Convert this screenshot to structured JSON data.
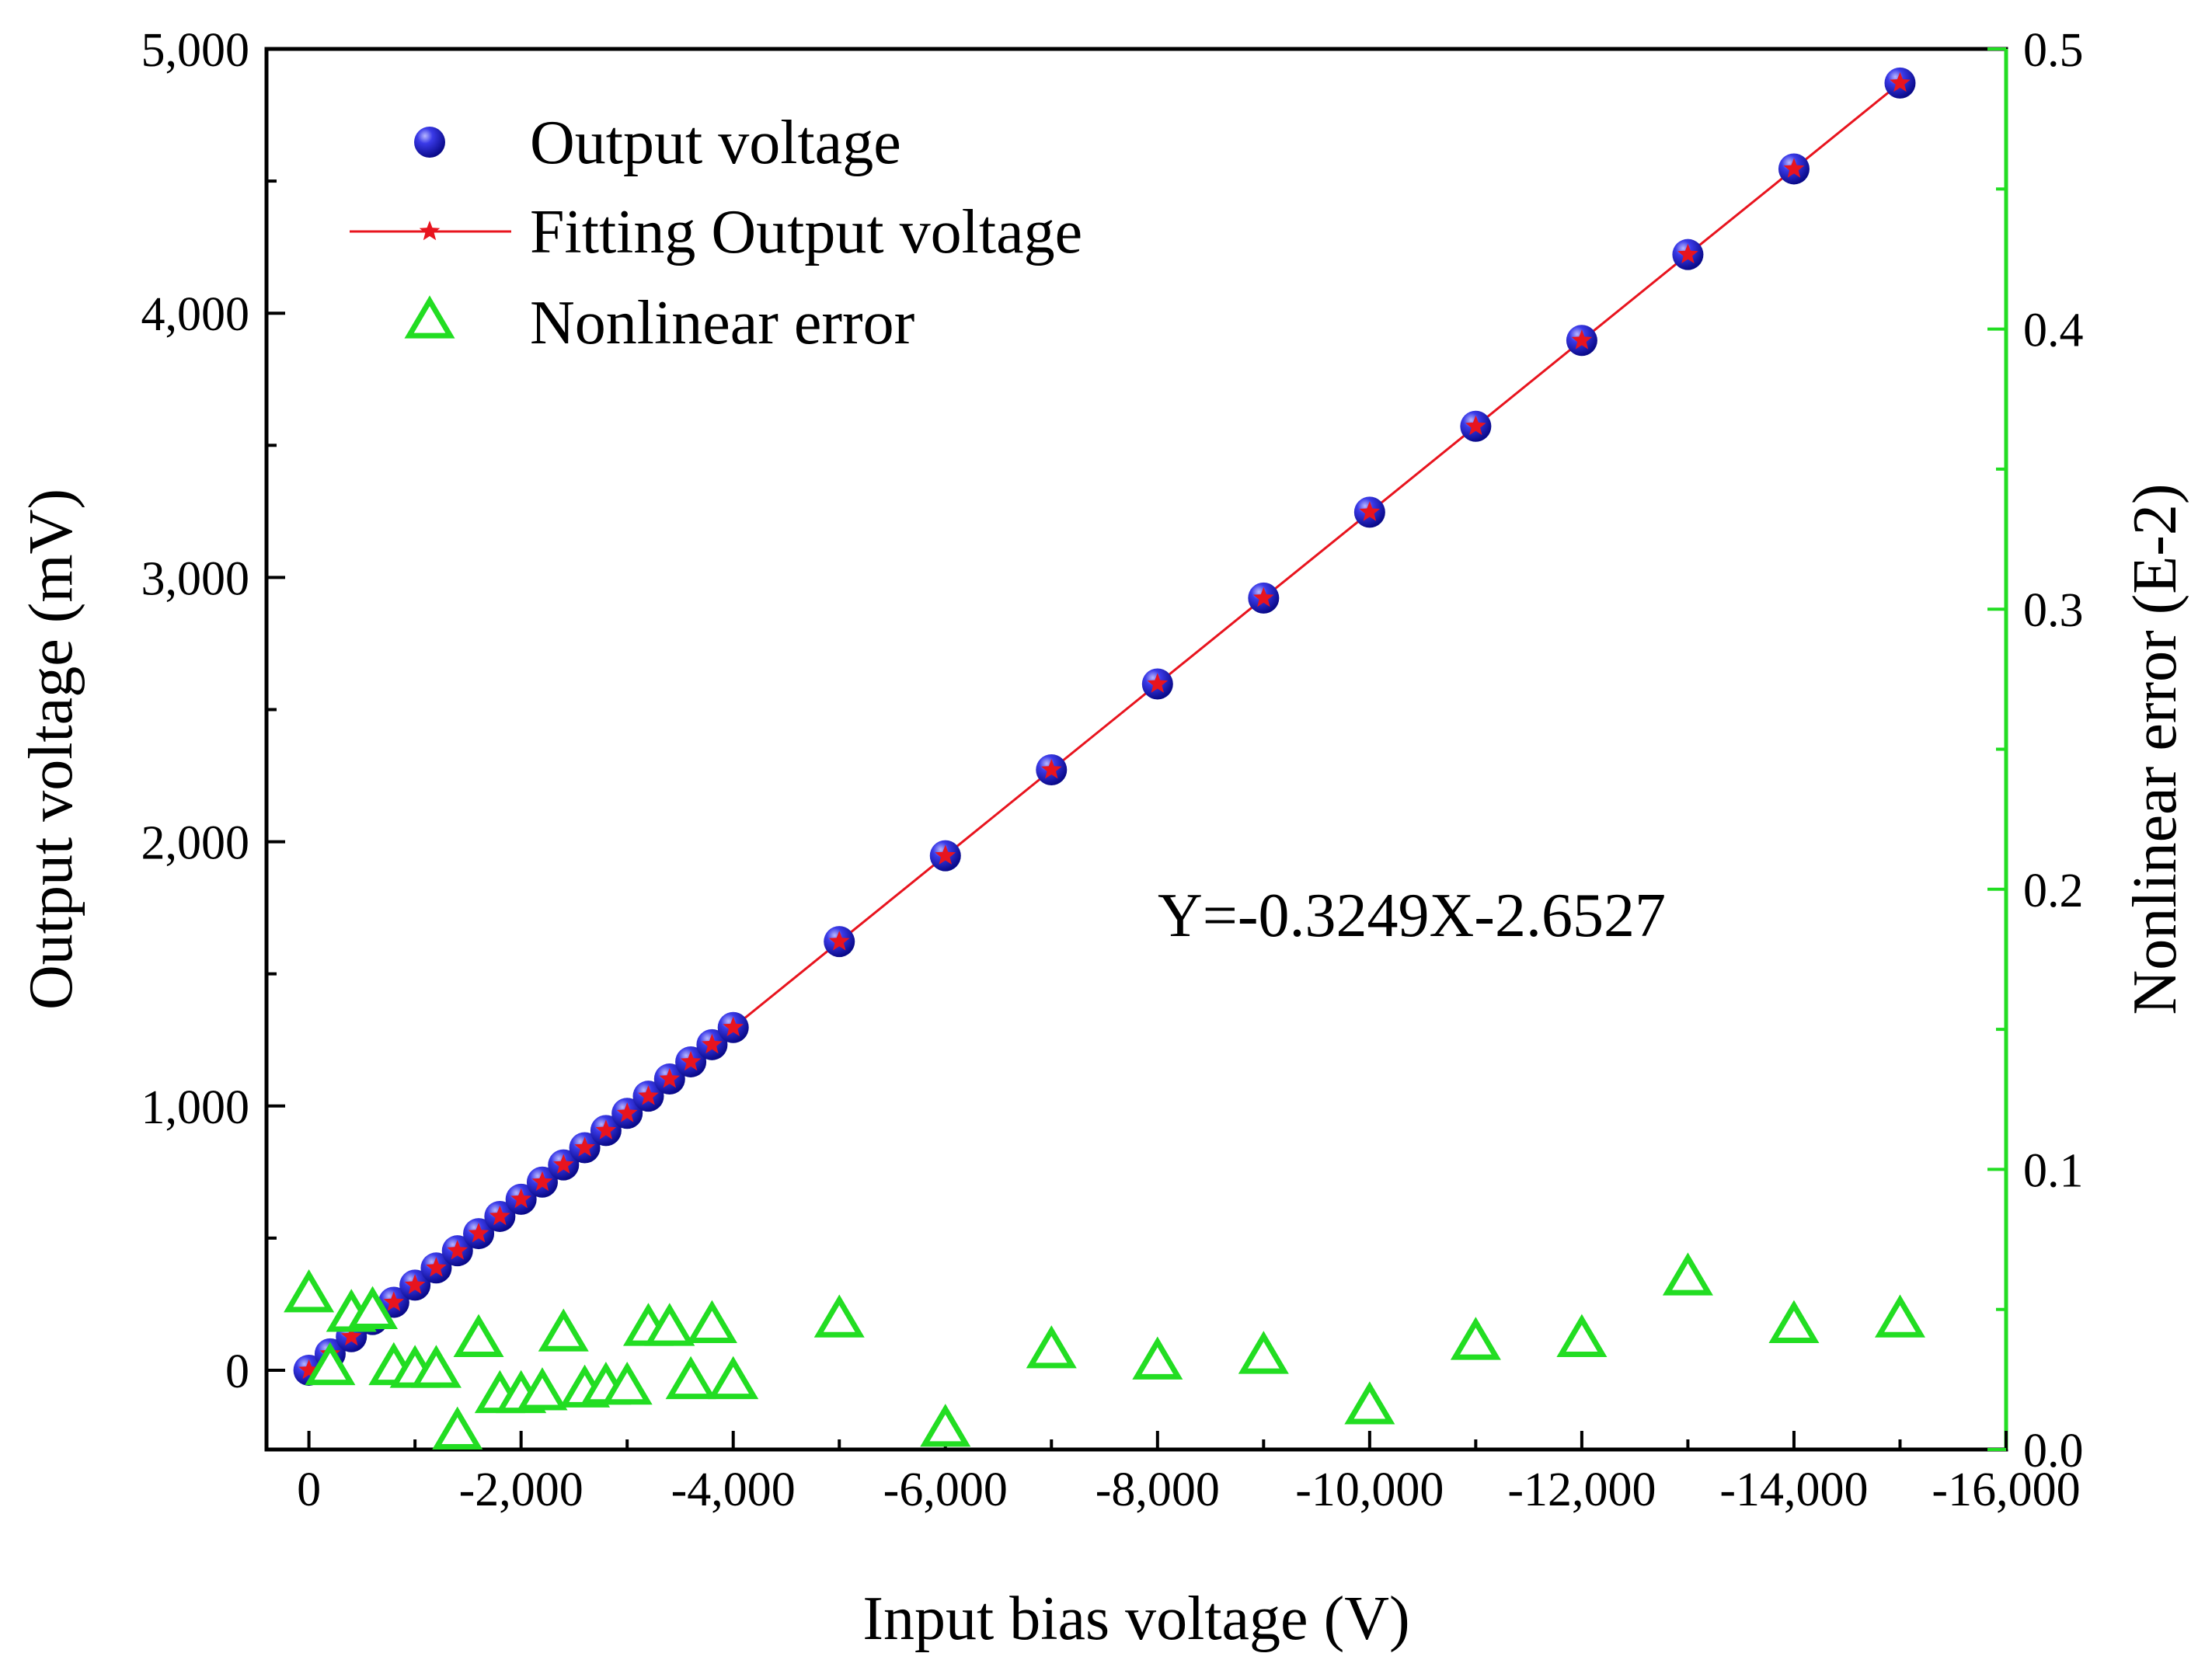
{
  "chart_data": {
    "type": "scatter",
    "x_axis": {
      "label": "Input bias voltage (V)",
      "range": [
        400,
        -16000
      ],
      "ticks": [
        0,
        -2000,
        -4000,
        -6000,
        -8000,
        -10000,
        -12000,
        -14000,
        -16000
      ],
      "tick_labels": [
        "0",
        "-2,000",
        "-4,000",
        "-6,000",
        "-8,000",
        "-10,000",
        "-12,000",
        "-14,000",
        "-16,000"
      ]
    },
    "y_axis_left": {
      "label": "Output voltage (mV)",
      "range": [
        -300,
        5000
      ],
      "ticks": [
        0,
        1000,
        2000,
        3000,
        4000,
        5000
      ],
      "tick_labels": [
        "0",
        "1,000",
        "2,000",
        "3,000",
        "4,000",
        "5,000"
      ]
    },
    "y_axis_right": {
      "label": "Nonlinear error (E-2)",
      "range": [
        0,
        0.5
      ],
      "ticks": [
        0,
        0.1,
        0.2,
        0.3,
        0.4,
        0.5
      ],
      "tick_labels": [
        "0.0",
        "0.1",
        "0.2",
        "0.3",
        "0.4",
        "0.5"
      ],
      "color": "#22dd22"
    },
    "legend": {
      "position": "top-left",
      "entries": [
        "Output voltage",
        "Fitting Output voltage",
        "Nonlinear error"
      ]
    },
    "annotation": "Y=-0.3249X-2.6527",
    "series": [
      {
        "name": "Output voltage",
        "axis": "left",
        "marker": "sphere",
        "color": "#1a1adc",
        "x": [
          0,
          -200,
          -400,
          -600,
          -800,
          -1000,
          -1200,
          -1400,
          -1600,
          -1800,
          -2000,
          -2200,
          -2400,
          -2600,
          -2800,
          -3000,
          -3200,
          -3400,
          -3600,
          -3800,
          -4000,
          -5000,
          -6000,
          -7000,
          -8000,
          -9000,
          -10000,
          -11000,
          -12000,
          -13000,
          -14000,
          -15000
        ],
        "y": [
          0,
          62,
          127,
          192,
          257,
          322,
          387,
          452,
          517,
          582,
          647,
          712,
          777,
          842,
          907,
          972,
          1037,
          1102,
          1167,
          1232,
          1297,
          1622,
          1947,
          2272,
          2597,
          2922,
          3247,
          3572,
          3897,
          4222,
          4546,
          4871
        ]
      },
      {
        "name": "Fitting Output voltage",
        "axis": "left",
        "marker": "star-line",
        "color": "#e8141e",
        "x": [
          0,
          -200,
          -400,
          -600,
          -800,
          -1000,
          -1200,
          -1400,
          -1600,
          -1800,
          -2000,
          -2200,
          -2400,
          -2600,
          -2800,
          -3000,
          -3200,
          -3400,
          -3600,
          -3800,
          -4000,
          -5000,
          -6000,
          -7000,
          -8000,
          -9000,
          -10000,
          -11000,
          -12000,
          -13000,
          -14000,
          -15000
        ],
        "y": [
          0,
          62,
          127,
          192,
          257,
          322,
          387,
          452,
          517,
          582,
          647,
          712,
          777,
          842,
          907,
          972,
          1037,
          1102,
          1167,
          1232,
          1297,
          1622,
          1947,
          2272,
          2597,
          2922,
          3247,
          3572,
          3897,
          4222,
          4546,
          4871
        ]
      },
      {
        "name": "Nonlinear error",
        "axis": "right",
        "marker": "triangle",
        "color": "#22dd22",
        "x": [
          0,
          -200,
          -400,
          -600,
          -800,
          -1000,
          -1200,
          -1400,
          -1600,
          -1800,
          -2000,
          -2200,
          -2400,
          -2600,
          -2800,
          -3000,
          -3200,
          -3400,
          -3600,
          -3800,
          -4000,
          -5000,
          -6000,
          -7000,
          -8000,
          -9000,
          -10000,
          -11000,
          -12000,
          -13000,
          -14000,
          -15000
        ],
        "y": [
          0.055,
          0.029,
          0.048,
          0.049,
          0.029,
          0.028,
          0.028,
          0.006,
          0.039,
          0.019,
          0.019,
          0.02,
          0.041,
          0.021,
          0.022,
          0.022,
          0.043,
          0.043,
          0.024,
          0.044,
          0.024,
          0.046,
          0.007,
          0.035,
          0.031,
          0.033,
          0.015,
          0.038,
          0.039,
          0.061,
          0.044,
          0.046
        ]
      }
    ]
  }
}
